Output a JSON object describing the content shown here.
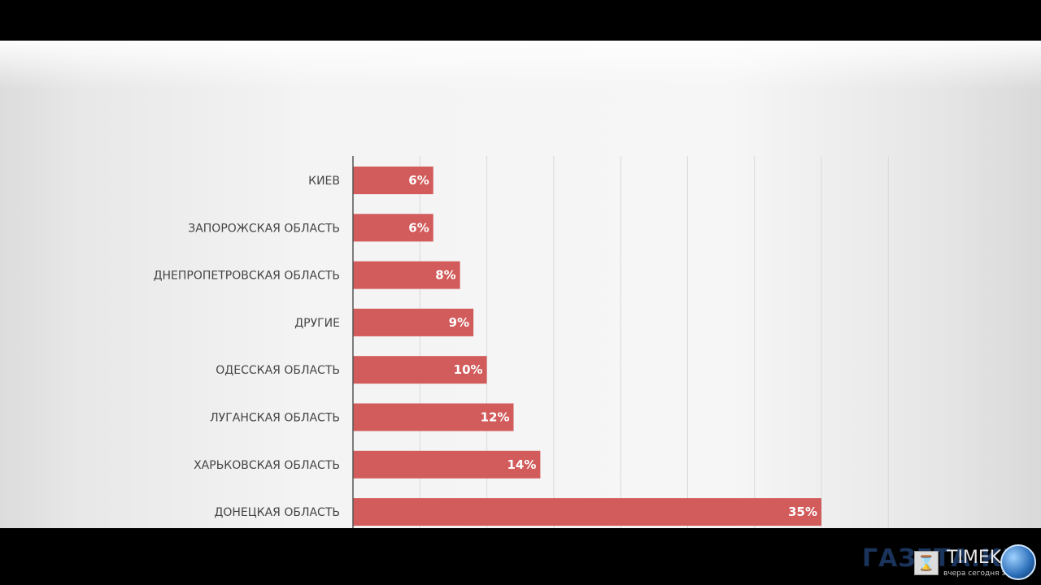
{
  "chart_data": {
    "type": "bar",
    "orientation": "horizontal",
    "categories": [
      "КИЕВ",
      "ЗАПОРОЖСКАЯ ОБЛАСТЬ",
      "ДНЕПРОПЕТРОВСКАЯ ОБЛАСТЬ",
      "ДРУГИЕ",
      "ОДЕССКАЯ ОБЛАСТЬ",
      "ЛУГАНСКАЯ ОБЛАСТЬ",
      "ХАРЬКОВСКАЯ ОБЛАСТЬ",
      "ДОНЕЦКАЯ ОБЛАСТЬ"
    ],
    "values": [
      6,
      6,
      8,
      9,
      10,
      12,
      14,
      35
    ],
    "value_labels": [
      "6%",
      "6%",
      "8%",
      "9%",
      "10%",
      "12%",
      "14%",
      "35%"
    ],
    "xlim": [
      0,
      40
    ],
    "grid": true,
    "bar_color": "#d25b5b"
  },
  "overlay": {
    "logo_text": "ГАЗЕТА.КЕ",
    "brand": "TIMEK",
    "tagline": "вчера сегодня завтра",
    "hourglass_icon": "hourglass-icon",
    "globe_icon": "globe-icon"
  }
}
